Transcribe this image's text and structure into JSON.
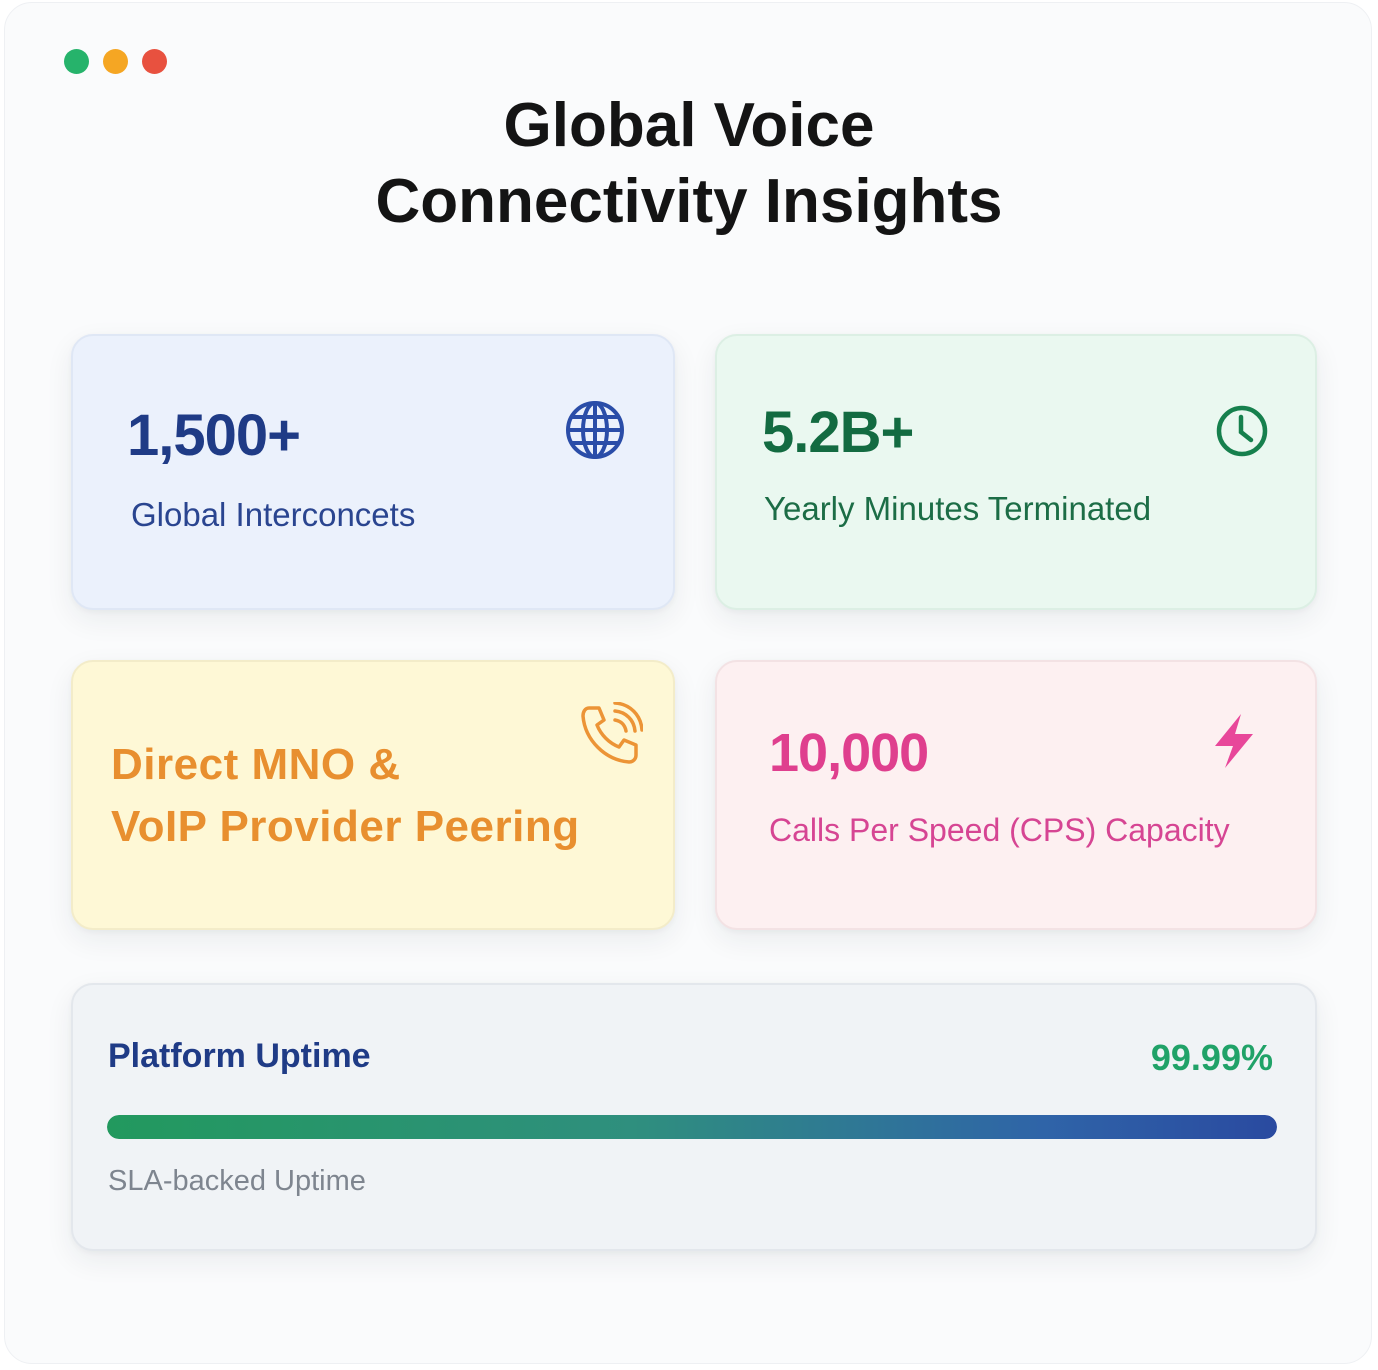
{
  "window": {
    "title_line1": "Global Voice",
    "title_line2": "Connectivity Insights"
  },
  "cards": {
    "interconnects": {
      "value": "1,500+",
      "label": "Global Interconcets",
      "icon": "globe-icon"
    },
    "minutes": {
      "value": "5.2B+",
      "label": "Yearly Minutes Terminated",
      "icon": "clock-icon"
    },
    "peering": {
      "line1": "Direct MNO &",
      "line2": "VoIP Provider Peering",
      "icon": "phone-ringing-icon"
    },
    "cps": {
      "value": "10,000",
      "label": "Calls Per Speed (CPS) Capacity",
      "icon": "lightning-icon"
    }
  },
  "uptime": {
    "title": "Platform Uptime",
    "value": "99.99%",
    "progress": 0.9999,
    "caption": "SLA-backed Uptime"
  },
  "colors": {
    "blue": "#1f3b86",
    "green": "#136b41",
    "orange": "#e88f2f",
    "pink": "#df3f8e",
    "uptime_green": "#20a268"
  }
}
